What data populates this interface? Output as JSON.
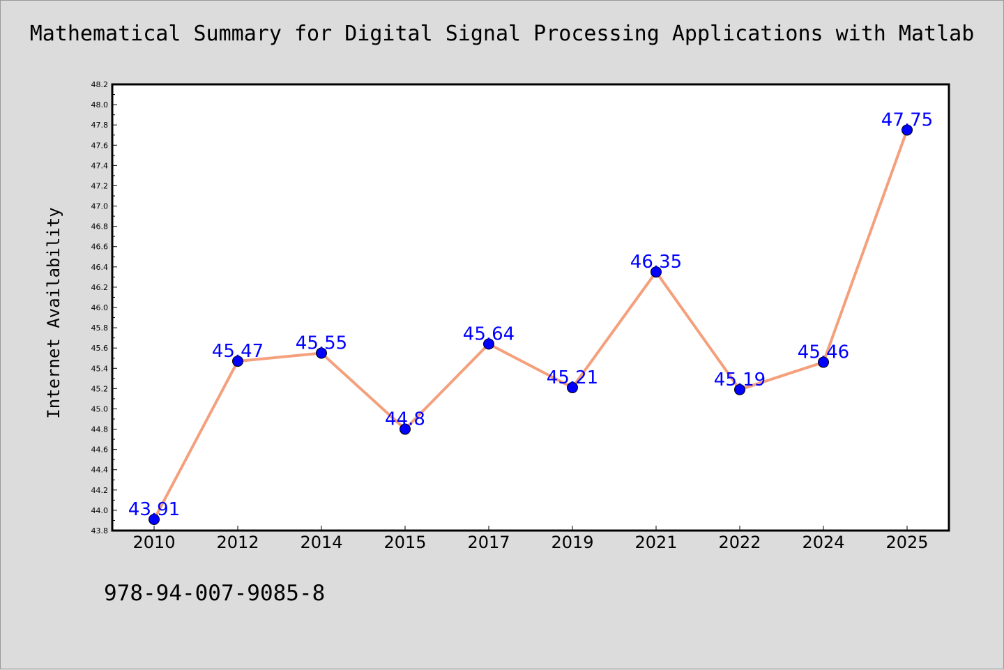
{
  "title": "Mathematical Summary for Digital Signal Processing Applications with Matlab",
  "footer": "978-94-007-9085-8",
  "chart_data": {
    "type": "line",
    "title": "Mathematical Summary for Digital Signal Processing Applications with Matlab",
    "xlabel": "",
    "ylabel": "Internet Availability",
    "categories": [
      "2010",
      "2012",
      "2014",
      "2015",
      "2017",
      "2019",
      "2021",
      "2022",
      "2024",
      "2025"
    ],
    "values": [
      43.91,
      45.47,
      45.55,
      44.8,
      45.64,
      45.21,
      46.35,
      45.19,
      45.46,
      47.75
    ],
    "data_labels": [
      "43.91",
      "45.47",
      "45.55",
      "44.8",
      "45.64",
      "45.21",
      "46.35",
      "45.19",
      "45.46",
      "47.75"
    ],
    "ylim": [
      43.8,
      48.2
    ],
    "yticks": [
      "43.8",
      "44.0",
      "44.2",
      "44.4",
      "44.6",
      "44.8",
      "45.0",
      "45.2",
      "45.4",
      "45.6",
      "45.8",
      "46.0",
      "46.2",
      "46.4",
      "46.6",
      "46.8",
      "47.0",
      "47.2",
      "47.4",
      "47.6",
      "47.8",
      "48.0",
      "48.2"
    ],
    "grid": false,
    "line_color": "#f4a07c",
    "marker_color": "#0000ff",
    "label_color": "#0000ff",
    "background": "#dcdcdc",
    "plot_background": "#ffffff"
  }
}
